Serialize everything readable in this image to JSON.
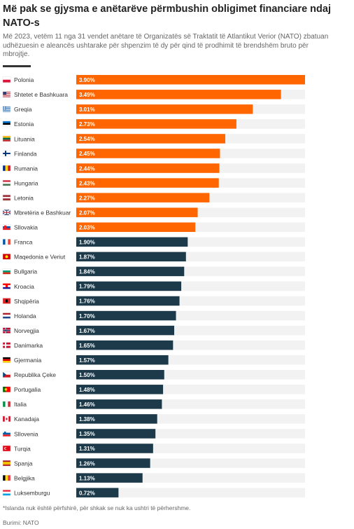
{
  "title": "Më pak se gjysma e anëtarëve përmbushin obligimet financiare ndaj NATO-s",
  "subtitle": "Më 2023, vetëm 11 nga 31 vendet anëtare të Organizatës së Traktatit të Atlantikut Verior (NATO) zbatuan udhëzuesin e aleancës ushtarake për shpenzim të dy për qind të prodhimit të brendshëm bruto për mbrojtje.",
  "footnote": "*Islanda nuk është përfshirë, për shkak se nuk ka ushtri të përhershme.",
  "source": "Burimi: NATO",
  "colors": {
    "highlight": "#ff6600",
    "base": "#1d3a4b",
    "track": "#f2f2f2"
  },
  "chart_data": {
    "type": "bar",
    "orientation": "horizontal",
    "value_suffix": "%",
    "xlim": [
      0,
      3.9
    ],
    "categories": [
      "Polonia",
      "Shtetet e Bashkuara",
      "Greqia",
      "Estonia",
      "Lituania",
      "Finlanda",
      "Rumania",
      "Hungaria",
      "Letonia",
      "Mbretëria e Bashkuar",
      "Sllovakia",
      "Franca",
      "Maqedonia e Veriut",
      "Bullgaria",
      "Kroacia",
      "Shqipëria",
      "Holanda",
      "Norvegjia",
      "Danimarka",
      "Gjermania",
      "Republika Çeke",
      "Portugalia",
      "Italia",
      "Kanadaja",
      "Sllovenia",
      "Turqia",
      "Spanja",
      "Belgjika",
      "Luksemburgu"
    ],
    "values": [
      3.9,
      3.49,
      3.01,
      2.73,
      2.54,
      2.45,
      2.44,
      2.43,
      2.27,
      2.07,
      2.03,
      1.9,
      1.87,
      1.84,
      1.79,
      1.76,
      1.7,
      1.67,
      1.65,
      1.57,
      1.5,
      1.48,
      1.46,
      1.38,
      1.35,
      1.31,
      1.26,
      1.13,
      0.72
    ],
    "labels": [
      "3.90%",
      "3.49%",
      "3.01%",
      "2.73%",
      "2.54%",
      "2.45%",
      "2.44%",
      "2.43%",
      "2.27%",
      "2.07%",
      "2.03%",
      "1.90%",
      "1.87%",
      "1.84%",
      "1.79%",
      "1.76%",
      "1.70%",
      "1.67%",
      "1.65%",
      "1.57%",
      "1.50%",
      "1.48%",
      "1.46%",
      "1.38%",
      "1.35%",
      "1.31%",
      "1.26%",
      "1.13%",
      "0.72%"
    ],
    "highlight_threshold": 2.0,
    "flag_icons": [
      "flag-pl-icon",
      "flag-us-icon",
      "flag-gr-icon",
      "flag-ee-icon",
      "flag-lt-icon",
      "flag-fi-icon",
      "flag-ro-icon",
      "flag-hu-icon",
      "flag-lv-icon",
      "flag-gb-icon",
      "flag-sk-icon",
      "flag-fr-icon",
      "flag-mk-icon",
      "flag-bg-icon",
      "flag-hr-icon",
      "flag-al-icon",
      "flag-nl-icon",
      "flag-no-icon",
      "flag-dk-icon",
      "flag-de-icon",
      "flag-cz-icon",
      "flag-pt-icon",
      "flag-it-icon",
      "flag-ca-icon",
      "flag-si-icon",
      "flag-tr-icon",
      "flag-es-icon",
      "flag-be-icon",
      "flag-lu-icon"
    ]
  }
}
